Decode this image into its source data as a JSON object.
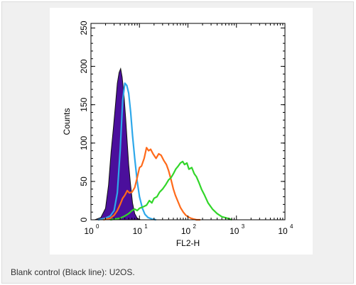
{
  "caption": "Blank control (Black line): U2OS.",
  "chart_data": {
    "type": "area",
    "title": "",
    "xlabel": "FL2-H",
    "ylabel": "Counts",
    "xscale": "log",
    "xlim": [
      1,
      10000
    ],
    "ylim": [
      0,
      256
    ],
    "x_ticks": [
      {
        "value": 1,
        "base": "10",
        "exp": "0"
      },
      {
        "value": 10,
        "base": "10",
        "exp": "1"
      },
      {
        "value": 100,
        "base": "10",
        "exp": "2"
      },
      {
        "value": 1000,
        "base": "10",
        "exp": "3"
      },
      {
        "value": 10000,
        "base": "10",
        "exp": "4"
      }
    ],
    "y_ticks": [
      0,
      50,
      100,
      150,
      200,
      250
    ],
    "series": [
      {
        "color": "#4b0f9c",
        "filled": true,
        "x": [
          1.2,
          1.6,
          2.0,
          2.3,
          2.6,
          2.9,
          3.2,
          3.5,
          3.8,
          4.1,
          4.4,
          4.8,
          5.2,
          5.6,
          6.0,
          6.5,
          7.2,
          8.0,
          9.0,
          10.5
        ],
        "y": [
          0,
          3,
          15,
          45,
          88,
          120,
          150,
          178,
          192,
          197,
          186,
          162,
          132,
          100,
          72,
          48,
          22,
          8,
          2,
          0
        ]
      },
      {
        "color": "#2ea8ea",
        "filled": false,
        "x": [
          1.4,
          2.0,
          2.5,
          3.0,
          3.5,
          4.0,
          4.5,
          5.0,
          5.5,
          6.0,
          6.6,
          7.2,
          8.0,
          9.0,
          10.0,
          11.5,
          13.0,
          15.0,
          18.0,
          22.0
        ],
        "y": [
          0,
          2,
          5,
          12,
          35,
          90,
          155,
          178,
          175,
          165,
          140,
          110,
          80,
          50,
          30,
          15,
          7,
          3,
          1,
          0
        ]
      },
      {
        "color": "#ff6a1a",
        "filled": false,
        "x": [
          1.8,
          2.5,
          3.0,
          3.5,
          4.0,
          4.5,
          5.0,
          5.6,
          6.2,
          7.0,
          8.0,
          9.0,
          10.0,
          11.0,
          12.5,
          14.0,
          15.5,
          17.0,
          19.0,
          22.0,
          25.0,
          28.0,
          32.0,
          36.0,
          40.0,
          45.0,
          50.0,
          55.0,
          62.0,
          70.0,
          80.0,
          90.0,
          100.0,
          115.0,
          130.0,
          150.0,
          180.0
        ],
        "y": [
          0,
          2,
          6,
          12,
          20,
          28,
          32,
          38,
          35,
          36,
          42,
          55,
          68,
          70,
          80,
          94,
          90,
          92,
          86,
          80,
          86,
          84,
          77,
          72,
          64,
          52,
          40,
          32,
          24,
          16,
          10,
          6,
          4,
          2,
          1,
          0,
          0
        ]
      },
      {
        "color": "#32d62a",
        "filled": false,
        "x": [
          2.5,
          4.0,
          5.0,
          6.0,
          7.0,
          8.0,
          9.0,
          10.0,
          12.0,
          14.0,
          16.0,
          18.0,
          20.0,
          23.0,
          26.0,
          30.0,
          35.0,
          40.0,
          45.0,
          50.0,
          56.0,
          63.0,
          70.0,
          78.0,
          85.0,
          95.0,
          105.0,
          120.0,
          135.0,
          150.0,
          170.0,
          190.0,
          220.0,
          260.0,
          320.0,
          400.0,
          500.0,
          650.0,
          800.0
        ],
        "y": [
          0,
          2,
          5,
          8,
          12,
          14,
          12,
          15,
          17,
          19,
          25,
          22,
          28,
          30,
          36,
          40,
          46,
          52,
          55,
          60,
          66,
          70,
          74,
          76,
          72,
          74,
          66,
          68,
          60,
          56,
          48,
          40,
          32,
          22,
          14,
          8,
          4,
          2,
          0
        ]
      }
    ]
  }
}
